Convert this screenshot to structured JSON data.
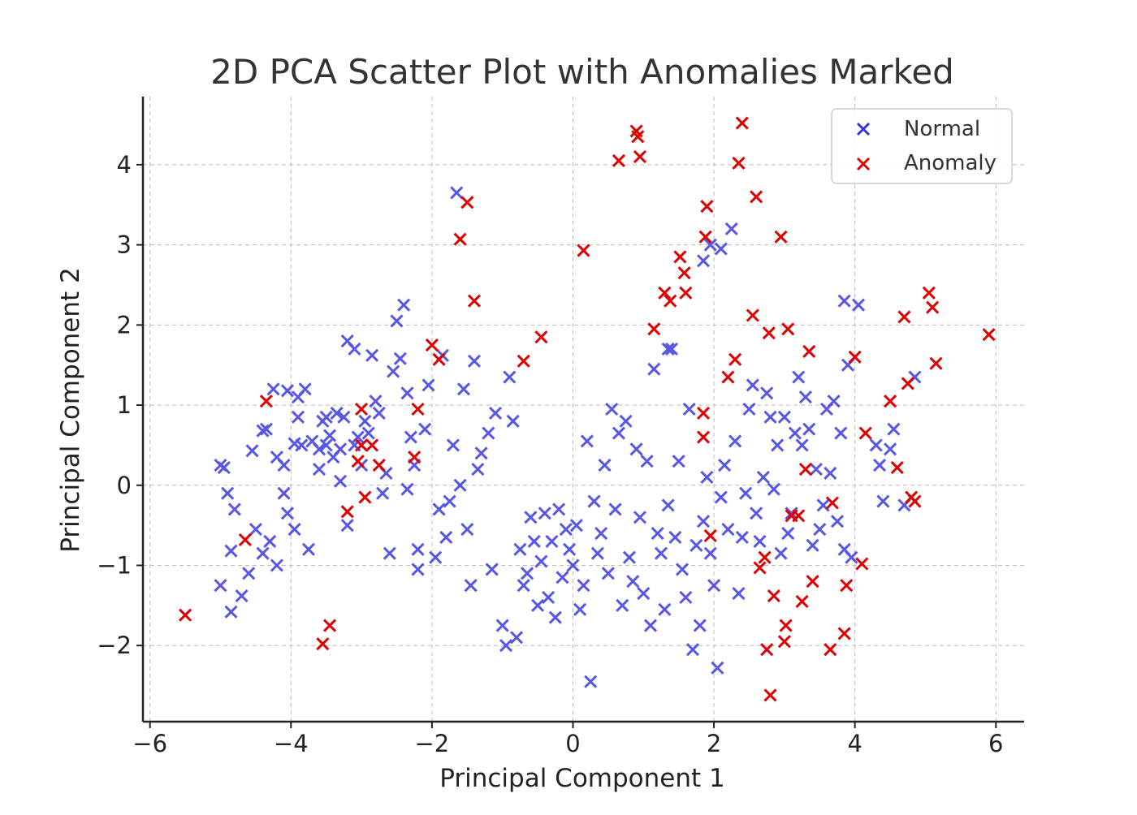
{
  "chart_data": {
    "type": "scatter",
    "title": "2D PCA Scatter Plot with Anomalies Marked",
    "xlabel": "Principal Component 1",
    "ylabel": "Principal Component 2",
    "xlim": [
      -6.1,
      6.4
    ],
    "ylim": [
      -2.95,
      4.85
    ],
    "x_ticks": [
      -6,
      -4,
      -2,
      0,
      2,
      4,
      6
    ],
    "x_tick_labels": [
      "−6",
      "−4",
      "−2",
      "0",
      "2",
      "4",
      "6"
    ],
    "y_ticks": [
      -2,
      -1,
      0,
      1,
      2,
      3,
      4
    ],
    "y_tick_labels": [
      "−2",
      "−1",
      "0",
      "1",
      "2",
      "3",
      "4"
    ],
    "grid": true,
    "legend_position": "top-right",
    "marker": "x",
    "series": [
      {
        "name": "Normal",
        "color": "#3333dd",
        "points": [
          [
            -5.0,
            0.25
          ],
          [
            -4.95,
            0.22
          ],
          [
            -4.9,
            -0.1
          ],
          [
            -4.85,
            -0.82
          ],
          [
            -4.8,
            -0.3
          ],
          [
            -4.7,
            -1.38
          ],
          [
            -4.85,
            -1.58
          ],
          [
            -5.0,
            -1.25
          ],
          [
            -4.6,
            -1.1
          ],
          [
            -4.55,
            0.43
          ],
          [
            -4.5,
            -0.55
          ],
          [
            -4.4,
            -0.85
          ],
          [
            -4.3,
            -0.7
          ],
          [
            -4.2,
            -1.0
          ],
          [
            -4.35,
            0.7
          ],
          [
            -4.4,
            0.68
          ],
          [
            -4.2,
            0.35
          ],
          [
            -4.1,
            0.25
          ],
          [
            -4.25,
            1.2
          ],
          [
            -4.05,
            1.18
          ],
          [
            -4.1,
            -0.1
          ],
          [
            -4.05,
            -0.35
          ],
          [
            -3.95,
            -0.55
          ],
          [
            -3.9,
            0.85
          ],
          [
            -3.95,
            0.52
          ],
          [
            -3.85,
            0.5
          ],
          [
            -3.9,
            1.1
          ],
          [
            -3.8,
            1.2
          ],
          [
            -3.75,
            -0.8
          ],
          [
            -3.7,
            0.55
          ],
          [
            -3.6,
            0.45
          ],
          [
            -3.6,
            0.2
          ],
          [
            -3.55,
            0.8
          ],
          [
            -3.5,
            0.85
          ],
          [
            -3.5,
            0.5
          ],
          [
            -3.45,
            0.62
          ],
          [
            -3.4,
            0.35
          ],
          [
            -3.35,
            0.9
          ],
          [
            -3.3,
            0.45
          ],
          [
            -3.3,
            0.05
          ],
          [
            -3.25,
            0.85
          ],
          [
            -3.2,
            -0.5
          ],
          [
            -3.2,
            1.8
          ],
          [
            -3.1,
            1.7
          ],
          [
            -3.1,
            0.5
          ],
          [
            -3.05,
            0.6
          ],
          [
            -3.0,
            0.25
          ],
          [
            -2.95,
            0.8
          ],
          [
            -2.9,
            0.65
          ],
          [
            -2.85,
            1.62
          ],
          [
            -2.8,
            1.05
          ],
          [
            -2.75,
            0.9
          ],
          [
            -2.7,
            -0.1
          ],
          [
            -2.65,
            0.15
          ],
          [
            -2.6,
            -0.85
          ],
          [
            -2.55,
            1.42
          ],
          [
            -2.5,
            2.05
          ],
          [
            -2.45,
            1.58
          ],
          [
            -2.4,
            2.25
          ],
          [
            -2.35,
            1.15
          ],
          [
            -2.35,
            -0.05
          ],
          [
            -2.3,
            0.6
          ],
          [
            -2.25,
            0.25
          ],
          [
            -2.2,
            -1.05
          ],
          [
            -2.2,
            -0.8
          ],
          [
            -2.1,
            0.7
          ],
          [
            -2.05,
            1.25
          ],
          [
            -1.95,
            -0.9
          ],
          [
            -1.9,
            -0.3
          ],
          [
            -1.85,
            1.62
          ],
          [
            -1.8,
            -0.65
          ],
          [
            -1.75,
            -0.2
          ],
          [
            -1.7,
            0.5
          ],
          [
            -1.65,
            3.65
          ],
          [
            -1.6,
            0.0
          ],
          [
            -1.55,
            1.2
          ],
          [
            -1.5,
            -0.55
          ],
          [
            -1.45,
            -1.25
          ],
          [
            -1.4,
            1.55
          ],
          [
            -1.35,
            0.2
          ],
          [
            -1.3,
            0.4
          ],
          [
            -1.2,
            0.65
          ],
          [
            -1.15,
            -1.05
          ],
          [
            -1.1,
            0.9
          ],
          [
            -1.0,
            -1.75
          ],
          [
            -0.95,
            -2.0
          ],
          [
            -0.9,
            1.35
          ],
          [
            -0.85,
            0.8
          ],
          [
            -0.8,
            -1.9
          ],
          [
            -0.75,
            -0.8
          ],
          [
            -0.7,
            -1.25
          ],
          [
            -0.65,
            -1.1
          ],
          [
            -0.6,
            -0.4
          ],
          [
            -0.55,
            -0.7
          ],
          [
            -0.5,
            -1.5
          ],
          [
            -0.45,
            -0.95
          ],
          [
            -0.4,
            -0.35
          ],
          [
            -0.35,
            -1.4
          ],
          [
            -0.3,
            -0.7
          ],
          [
            -0.25,
            -1.65
          ],
          [
            -0.2,
            -0.3
          ],
          [
            -0.15,
            -1.15
          ],
          [
            -0.1,
            -0.55
          ],
          [
            -0.05,
            -0.8
          ],
          [
            0.0,
            -1.0
          ],
          [
            0.05,
            -0.5
          ],
          [
            0.1,
            -1.55
          ],
          [
            0.15,
            -1.25
          ],
          [
            0.2,
            0.55
          ],
          [
            0.25,
            -2.45
          ],
          [
            0.3,
            -0.2
          ],
          [
            0.35,
            -0.85
          ],
          [
            0.4,
            -0.6
          ],
          [
            0.45,
            0.25
          ],
          [
            0.5,
            -1.1
          ],
          [
            0.55,
            0.95
          ],
          [
            0.6,
            -0.3
          ],
          [
            0.65,
            0.65
          ],
          [
            0.7,
            -1.5
          ],
          [
            0.75,
            0.8
          ],
          [
            0.8,
            -0.9
          ],
          [
            0.85,
            -1.2
          ],
          [
            0.9,
            0.45
          ],
          [
            0.95,
            -0.4
          ],
          [
            1.0,
            -1.35
          ],
          [
            1.05,
            0.3
          ],
          [
            1.1,
            -1.75
          ],
          [
            1.15,
            1.45
          ],
          [
            1.2,
            -0.6
          ],
          [
            1.25,
            -0.85
          ],
          [
            1.3,
            -1.55
          ],
          [
            1.35,
            -0.25
          ],
          [
            1.4,
            1.7
          ],
          [
            1.45,
            -0.65
          ],
          [
            1.5,
            0.3
          ],
          [
            1.55,
            -1.05
          ],
          [
            1.6,
            -1.4
          ],
          [
            1.65,
            0.95
          ],
          [
            1.7,
            -2.05
          ],
          [
            1.75,
            -0.75
          ],
          [
            1.8,
            -1.75
          ],
          [
            1.85,
            -0.45
          ],
          [
            1.9,
            0.1
          ],
          [
            1.95,
            -0.85
          ],
          [
            2.0,
            -1.25
          ],
          [
            2.05,
            -2.28
          ],
          [
            2.1,
            -0.15
          ],
          [
            2.15,
            0.25
          ],
          [
            2.2,
            -0.55
          ],
          [
            2.25,
            3.2
          ],
          [
            2.3,
            0.55
          ],
          [
            2.35,
            -1.35
          ],
          [
            2.4,
            -0.65
          ],
          [
            2.45,
            -0.1
          ],
          [
            2.5,
            0.95
          ],
          [
            2.55,
            1.25
          ],
          [
            2.6,
            -0.35
          ],
          [
            2.65,
            -0.7
          ],
          [
            2.7,
            0.1
          ],
          [
            2.75,
            1.15
          ],
          [
            2.8,
            0.85
          ],
          [
            2.85,
            -0.05
          ],
          [
            2.9,
            0.5
          ],
          [
            2.95,
            -0.85
          ],
          [
            3.0,
            0.85
          ],
          [
            3.05,
            -0.6
          ],
          [
            3.1,
            -0.35
          ],
          [
            3.15,
            0.65
          ],
          [
            3.2,
            1.35
          ],
          [
            3.25,
            0.5
          ],
          [
            3.3,
            1.1
          ],
          [
            3.35,
            0.7
          ],
          [
            3.4,
            -0.75
          ],
          [
            3.45,
            0.2
          ],
          [
            3.5,
            -0.55
          ],
          [
            3.55,
            -0.25
          ],
          [
            3.6,
            0.95
          ],
          [
            3.65,
            0.15
          ],
          [
            3.7,
            1.05
          ],
          [
            3.75,
            -0.45
          ],
          [
            3.8,
            0.65
          ],
          [
            3.85,
            -0.8
          ],
          [
            3.85,
            2.3
          ],
          [
            3.9,
            1.5
          ],
          [
            3.95,
            -0.9
          ],
          [
            4.05,
            2.25
          ],
          [
            4.3,
            0.5
          ],
          [
            4.35,
            0.25
          ],
          [
            4.4,
            -0.2
          ],
          [
            4.5,
            0.45
          ],
          [
            4.55,
            0.7
          ],
          [
            4.7,
            -0.25
          ],
          [
            4.85,
            1.35
          ],
          [
            1.85,
            2.8
          ],
          [
            1.95,
            3.0
          ],
          [
            2.1,
            2.95
          ],
          [
            1.35,
            1.7
          ]
        ]
      },
      {
        "name": "Anomaly",
        "color": "#dd0000",
        "points": [
          [
            -5.5,
            -1.62
          ],
          [
            -4.65,
            -0.68
          ],
          [
            -4.35,
            1.05
          ],
          [
            -3.55,
            -1.98
          ],
          [
            -3.45,
            -1.75
          ],
          [
            -3.2,
            -0.33
          ],
          [
            -3.05,
            0.3
          ],
          [
            -3.0,
            0.95
          ],
          [
            -3.0,
            0.5
          ],
          [
            -2.95,
            -0.15
          ],
          [
            -2.85,
            0.5
          ],
          [
            -2.75,
            0.25
          ],
          [
            -2.25,
            0.35
          ],
          [
            -2.2,
            0.95
          ],
          [
            -2.0,
            1.75
          ],
          [
            -1.9,
            1.57
          ],
          [
            -1.6,
            3.07
          ],
          [
            -1.5,
            3.53
          ],
          [
            -1.4,
            2.3
          ],
          [
            -0.7,
            1.55
          ],
          [
            -0.45,
            1.85
          ],
          [
            0.15,
            2.93
          ],
          [
            0.65,
            4.05
          ],
          [
            0.9,
            4.42
          ],
          [
            0.92,
            4.35
          ],
          [
            0.95,
            4.1
          ],
          [
            1.15,
            1.95
          ],
          [
            1.3,
            2.4
          ],
          [
            1.38,
            2.3
          ],
          [
            1.52,
            2.85
          ],
          [
            1.58,
            2.65
          ],
          [
            1.6,
            2.4
          ],
          [
            1.85,
            0.9
          ],
          [
            1.85,
            0.6
          ],
          [
            1.88,
            3.1
          ],
          [
            1.9,
            3.48
          ],
          [
            1.95,
            -0.63
          ],
          [
            2.2,
            1.35
          ],
          [
            2.3,
            1.57
          ],
          [
            2.35,
            4.02
          ],
          [
            2.4,
            4.52
          ],
          [
            2.55,
            2.12
          ],
          [
            2.6,
            3.6
          ],
          [
            2.65,
            -1.03
          ],
          [
            2.72,
            -0.9
          ],
          [
            2.75,
            -2.05
          ],
          [
            2.8,
            -2.62
          ],
          [
            2.78,
            1.9
          ],
          [
            2.85,
            -1.38
          ],
          [
            2.95,
            3.1
          ],
          [
            3.0,
            -1.95
          ],
          [
            3.02,
            -1.75
          ],
          [
            3.05,
            1.95
          ],
          [
            3.1,
            -0.38
          ],
          [
            3.2,
            -0.38
          ],
          [
            3.25,
            -1.45
          ],
          [
            3.3,
            0.2
          ],
          [
            3.35,
            1.67
          ],
          [
            3.4,
            -1.2
          ],
          [
            3.65,
            -2.05
          ],
          [
            3.68,
            -0.22
          ],
          [
            3.85,
            -1.85
          ],
          [
            3.88,
            -1.25
          ],
          [
            4.0,
            1.6
          ],
          [
            4.1,
            -0.98
          ],
          [
            4.15,
            0.65
          ],
          [
            4.5,
            1.05
          ],
          [
            4.6,
            0.22
          ],
          [
            4.7,
            2.1
          ],
          [
            4.75,
            1.27
          ],
          [
            4.8,
            -0.15
          ],
          [
            4.85,
            -0.2
          ],
          [
            5.05,
            2.4
          ],
          [
            5.1,
            2.22
          ],
          [
            5.15,
            1.52
          ],
          [
            5.9,
            1.88
          ]
        ]
      }
    ]
  }
}
